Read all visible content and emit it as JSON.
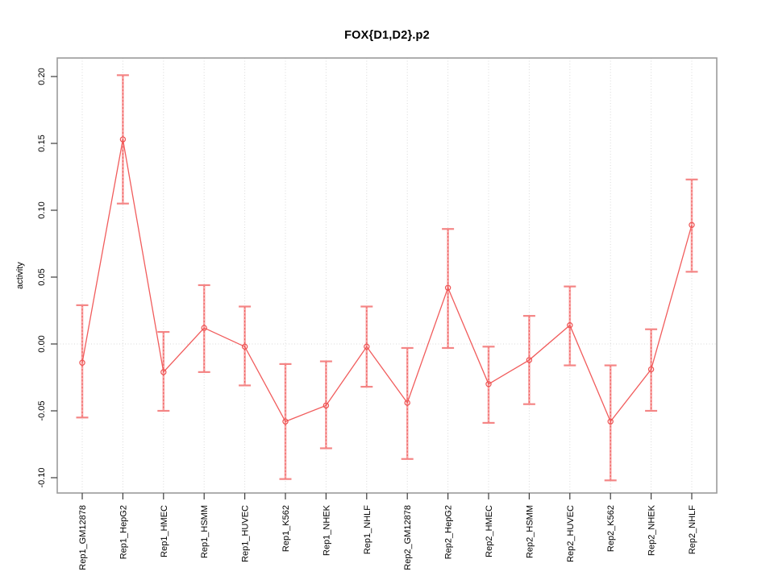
{
  "chart_data": {
    "type": "line",
    "title": "FOX{D1,D2}.p2",
    "xlabel": "",
    "ylabel": "activity",
    "categories": [
      "Rep1_GM12878",
      "Rep1_HepG2",
      "Rep1_HMEC",
      "Rep1_HSMM",
      "Rep1_HUVEC",
      "Rep1_K562",
      "Rep1_NHEK",
      "Rep1_NHLF",
      "Rep2_GM12878",
      "Rep2_HepG2",
      "Rep2_HMEC",
      "Rep2_HSMM",
      "Rep2_HUVEC",
      "Rep2_K562",
      "Rep2_NHEK",
      "Rep2_NHLF"
    ],
    "series": [
      {
        "name": "activity",
        "values": [
          -0.014,
          0.153,
          -0.021,
          0.012,
          -0.002,
          -0.058,
          -0.046,
          -0.002,
          -0.044,
          0.042,
          -0.03,
          -0.012,
          0.014,
          -0.058,
          -0.019,
          0.089
        ],
        "lower": [
          -0.055,
          0.105,
          -0.05,
          -0.021,
          -0.031,
          -0.101,
          -0.078,
          -0.032,
          -0.086,
          -0.003,
          -0.059,
          -0.045,
          -0.016,
          -0.102,
          -0.05,
          0.054
        ],
        "upper": [
          0.029,
          0.201,
          0.009,
          0.044,
          0.028,
          -0.015,
          -0.013,
          0.028,
          -0.003,
          0.086,
          -0.002,
          0.021,
          0.043,
          -0.016,
          0.011,
          0.123
        ]
      }
    ],
    "yticks": [
      0.2,
      0.15,
      0.1,
      0.05,
      0.0,
      -0.05,
      -0.1
    ],
    "ytick_labels": [
      "0.20",
      "0.15",
      "0.10",
      "0.05",
      "0.00",
      "-0.05",
      "-0.10"
    ],
    "ylim": [
      -0.113,
      0.215
    ],
    "grid": {
      "vertical_per_category": true,
      "zero_line": true,
      "style": "dotted"
    },
    "legend_position": "none",
    "marker": "open-circle",
    "colors": {
      "series_line": "#f15c5c",
      "marker_stroke": "#ee5252",
      "error_bar_pale": "#f8a8a8",
      "error_bar_dash": "#ef5555",
      "error_cap": "#f48585",
      "frame": "#9b9b9b",
      "tick": "#3c3c3c",
      "grid": "#d9d9d9",
      "text": "#000000"
    }
  }
}
